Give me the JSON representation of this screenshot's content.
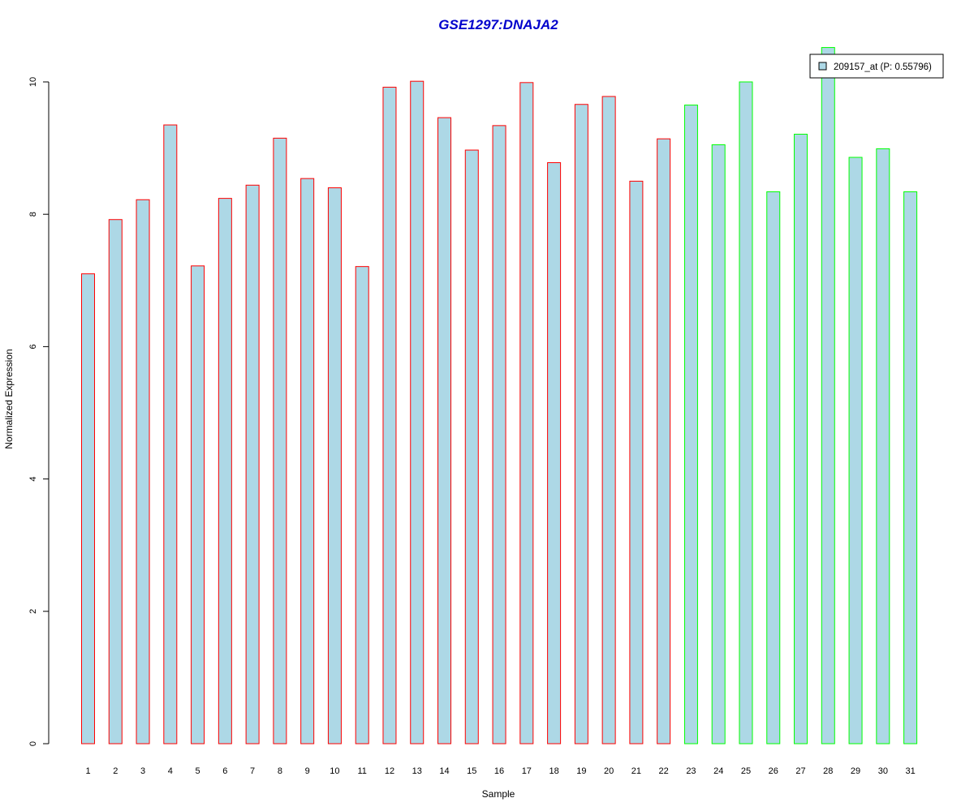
{
  "chart_data": {
    "type": "bar",
    "title": "GSE1297:DNAJA2",
    "xlabel": "Sample",
    "ylabel": "Normalized Expression",
    "ylim": [
      0,
      10
    ],
    "yticks": [
      0,
      2,
      4,
      6,
      8,
      10
    ],
    "grid": false,
    "categories": [
      "1",
      "2",
      "3",
      "4",
      "5",
      "6",
      "7",
      "8",
      "9",
      "10",
      "11",
      "12",
      "13",
      "14",
      "15",
      "16",
      "17",
      "18",
      "19",
      "20",
      "21",
      "22",
      "23",
      "24",
      "25",
      "26",
      "27",
      "28",
      "29",
      "30",
      "31"
    ],
    "series": [
      {
        "name": "209157_at (P: 0.55796)",
        "values": [
          7.1,
          7.92,
          8.22,
          9.35,
          7.22,
          8.24,
          8.44,
          9.15,
          8.54,
          8.4,
          7.21,
          9.92,
          10.01,
          9.46,
          8.97,
          9.34,
          9.99,
          8.78,
          9.66,
          9.78,
          8.5,
          9.14,
          9.65,
          9.05,
          10.0,
          8.34,
          9.21,
          10.52,
          8.86,
          8.99,
          8.34
        ]
      }
    ],
    "group_colors": [
      "red",
      "red",
      "red",
      "red",
      "red",
      "red",
      "red",
      "red",
      "red",
      "red",
      "red",
      "red",
      "red",
      "red",
      "red",
      "red",
      "red",
      "red",
      "red",
      "red",
      "red",
      "red",
      "green",
      "green",
      "green",
      "green",
      "green",
      "green",
      "green",
      "green",
      "green"
    ],
    "legend": {
      "position": "top-right",
      "entries": [
        "209157_at (P: 0.55796)"
      ]
    },
    "colors": {
      "bar_fill": "#add8e6",
      "red": "#ff0000",
      "green": "#00ff00",
      "title": "#0000cc",
      "axis": "#000000"
    }
  }
}
